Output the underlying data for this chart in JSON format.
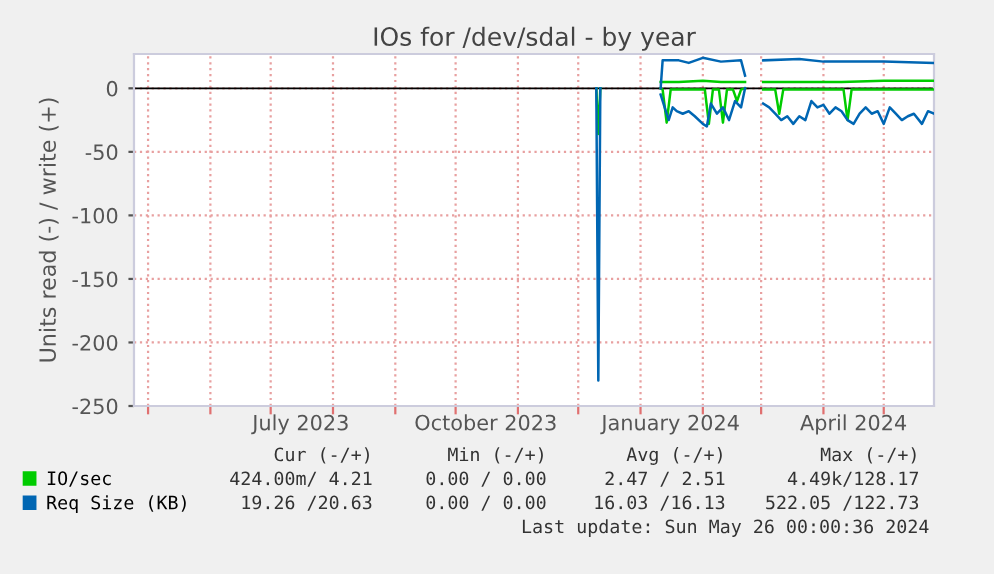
{
  "chart_data": {
    "type": "line",
    "title": "IOs for /dev/sdal - by year",
    "ylabel": "Units read (-) / write (+)",
    "xlim": [
      "2023-04-24",
      "2024-05-26"
    ],
    "ylim": [
      -250,
      27
    ],
    "xticks": [
      {
        "value": "2023-05-01",
        "label": null
      },
      {
        "value": "2023-06-01",
        "label": null
      },
      {
        "value": "2023-07-01",
        "label": null
      },
      {
        "value": "2023-07-16",
        "label": "July 2023"
      },
      {
        "value": "2023-08-01",
        "label": null
      },
      {
        "value": "2023-09-01",
        "label": null
      },
      {
        "value": "2023-10-01",
        "label": null
      },
      {
        "value": "2023-10-16",
        "label": "October 2023"
      },
      {
        "value": "2023-11-01",
        "label": null
      },
      {
        "value": "2023-12-01",
        "label": null
      },
      {
        "value": "2024-01-01",
        "label": null
      },
      {
        "value": "2024-01-16",
        "label": "January 2024"
      },
      {
        "value": "2024-02-01",
        "label": null
      },
      {
        "value": "2024-03-01",
        "label": null
      },
      {
        "value": "2024-04-01",
        "label": null
      },
      {
        "value": "2024-04-16",
        "label": "April 2024"
      },
      {
        "value": "2024-05-01",
        "label": null
      }
    ],
    "yticks": [
      -250,
      -200,
      -150,
      -100,
      -50,
      0
    ],
    "grid": true,
    "legend": "bottom left",
    "marker": "none",
    "line_style": "solid",
    "ref_lines": [
      {
        "axis": "y",
        "value": 0,
        "color": "#000000"
      }
    ],
    "series": [
      {
        "color": "#00cc00",
        "x": [
          "2023-12-10",
          "2023-12-11",
          "2023-12-12",
          "2024-01-10",
          "2024-01-11",
          "2024-01-12",
          "2024-01-14",
          "2024-01-16",
          "2024-01-20",
          "2024-02-02",
          "2024-02-04",
          "2024-02-06",
          "2024-02-09",
          "2024-02-11",
          "2024-02-13",
          "2024-02-16",
          "2024-02-18",
          "2024-02-20",
          "2024-02-22",
          "2024-02-26",
          "2024-03-02",
          "2024-03-08",
          "2024-03-10",
          "2024-03-12",
          "2024-04-11",
          "2024-04-13",
          "2024-04-15",
          "2024-05-26"
        ],
        "values": [
          0,
          -36,
          0,
          null,
          0,
          -1,
          -27,
          -1,
          -1,
          -1,
          -28,
          -1,
          -1,
          -27,
          -1,
          -1,
          -10,
          -1,
          0,
          null,
          -1,
          -1,
          -20,
          -1,
          -1,
          -25,
          -1,
          -1
        ]
      },
      {
        "name": "IO/sec",
        "color": "#00cc00",
        "x": [
          "2024-01-11",
          "2024-01-20",
          "2024-02-01",
          "2024-02-10",
          "2024-02-22",
          "2024-02-26",
          "2024-03-02",
          "2024-03-20",
          "2024-04-10",
          "2024-05-01",
          "2024-05-26"
        ],
        "values": [
          5,
          5,
          6,
          5,
          5,
          null,
          5,
          5,
          5,
          6,
          6
        ]
      },
      {
        "color": "#0066b3",
        "x": [
          "2023-12-10",
          "2023-12-11",
          "2023-12-12",
          "2024-01-10",
          "2024-01-11",
          "2024-01-13",
          "2024-01-15",
          "2024-01-17",
          "2024-01-19",
          "2024-01-22",
          "2024-01-25",
          "2024-01-28",
          "2024-02-01",
          "2024-02-03",
          "2024-02-05",
          "2024-02-08",
          "2024-02-11",
          "2024-02-14",
          "2024-02-17",
          "2024-02-20",
          "2024-02-22",
          "2024-02-26",
          "2024-03-02",
          "2024-03-05",
          "2024-03-08",
          "2024-03-11",
          "2024-03-14",
          "2024-03-17",
          "2024-03-20",
          "2024-03-23",
          "2024-03-26",
          "2024-03-29",
          "2024-04-01",
          "2024-04-04",
          "2024-04-07",
          "2024-04-10",
          "2024-04-13",
          "2024-04-16",
          "2024-04-19",
          "2024-04-22",
          "2024-04-25",
          "2024-04-28",
          "2024-05-01",
          "2024-05-04",
          "2024-05-07",
          "2024-05-10",
          "2024-05-13",
          "2024-05-16",
          "2024-05-20",
          "2024-05-23",
          "2024-05-26"
        ],
        "values": [
          0,
          -230,
          0,
          null,
          -5,
          -15,
          -25,
          -15,
          -18,
          -20,
          -18,
          -22,
          -28,
          -30,
          -12,
          -20,
          -15,
          -25,
          -10,
          -15,
          0,
          null,
          -12,
          -15,
          -20,
          -25,
          -22,
          -28,
          -22,
          -25,
          -10,
          -15,
          -13,
          -20,
          -15,
          -18,
          -25,
          -28,
          -20,
          -15,
          -20,
          -18,
          -28,
          -15,
          -20,
          -25,
          -22,
          -20,
          -28,
          -18,
          -20
        ]
      },
      {
        "name": "Req Size (KB)",
        "color": "#0066b3",
        "x": [
          "2024-01-11",
          "2024-01-12",
          "2024-01-20",
          "2024-01-25",
          "2024-02-01",
          "2024-02-10",
          "2024-02-20",
          "2024-02-22",
          "2024-02-26",
          "2024-03-02",
          "2024-03-20",
          "2024-04-01",
          "2024-04-15",
          "2024-05-01",
          "2024-05-26"
        ],
        "values": [
          0,
          22,
          22,
          20,
          24,
          21,
          22,
          10,
          null,
          22,
          23,
          21,
          21,
          21,
          20
        ]
      }
    ],
    "annotations": [
      "Cur (-/+)",
      "Min (-/+)",
      "Avg (-/+)",
      "Max (-/+)",
      "424.00m/ 4.21",
      "0.00 / 0.00",
      "2.47 / 2.51",
      "4.49k/128.17",
      "19.26 /20.63",
      "0.00 / 0.00",
      "16.03 /16.13",
      "522.05 /122.73",
      "Last update: Sun May 26 00:00:36 2024"
    ]
  }
}
